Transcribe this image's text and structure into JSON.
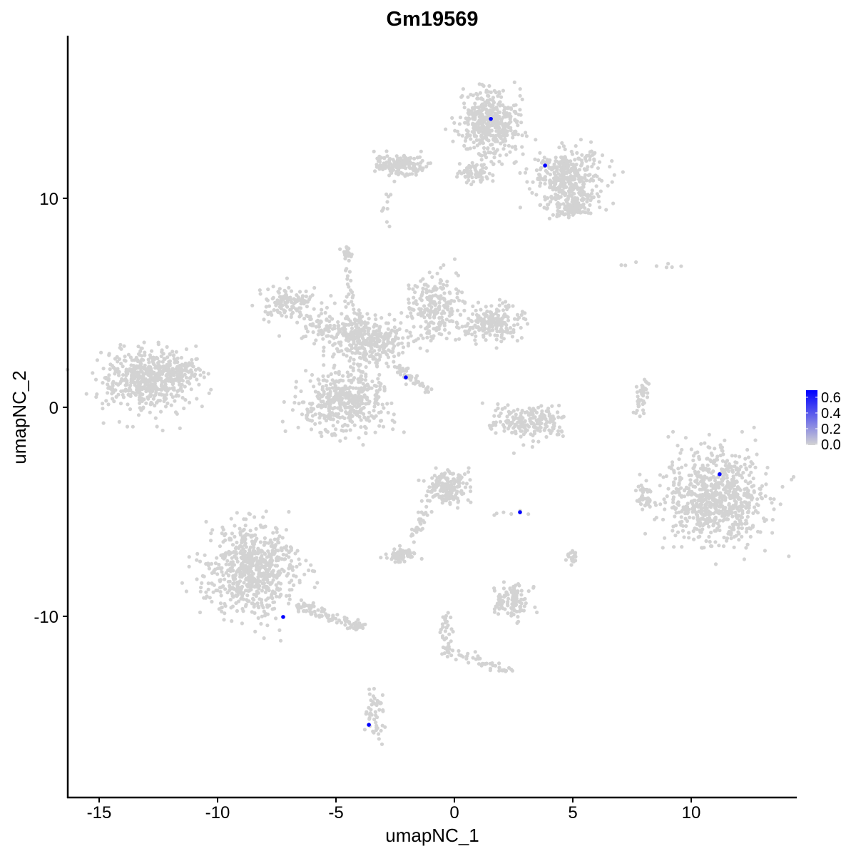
{
  "chart_data": {
    "type": "scatter",
    "title": "Gm19569",
    "xlabel": "umapNC_1",
    "ylabel": "umapNC_2",
    "xlim": [
      -16.5,
      14.5
    ],
    "ylim": [
      -18.4,
      17.7
    ],
    "xticks": [
      -15,
      -10,
      -5,
      0,
      5,
      10
    ],
    "yticks": [
      -10,
      0,
      10
    ],
    "grid": false,
    "colors": {
      "low": "#d3d3d3",
      "high": "#0000ff"
    },
    "legend": {
      "placement": "right",
      "ticks": [
        "0.0",
        "0.2",
        "0.4",
        "0.6"
      ],
      "range": [
        0,
        0.69
      ]
    },
    "expressing_points": [
      {
        "x": 1.54,
        "y": 13.8,
        "value": 0.69
      },
      {
        "x": 3.83,
        "y": 11.57,
        "value": 0.69
      },
      {
        "x": -2.05,
        "y": 1.43,
        "value": 0.69
      },
      {
        "x": 11.2,
        "y": -3.2,
        "value": 0.69
      },
      {
        "x": 2.77,
        "y": -5.02,
        "value": 0.69
      },
      {
        "x": -7.23,
        "y": -10.03,
        "value": 0.69
      },
      {
        "x": -3.61,
        "y": -15.19,
        "value": 0.69
      }
    ],
    "zero_expression_clusters": [
      {
        "cx": -13.0,
        "cy": 1.3,
        "sx": 1.2,
        "sy": 0.9,
        "n": 500
      },
      {
        "cx": -11.8,
        "cy": 1.9,
        "sx": 0.6,
        "sy": 0.5,
        "n": 100
      },
      {
        "cx": -7.1,
        "cy": 5.0,
        "sx": 0.8,
        "sy": 0.5,
        "n": 120
      },
      {
        "cx": -3.6,
        "cy": 3.2,
        "sx": 0.9,
        "sy": 0.8,
        "n": 300
      },
      {
        "cx": -4.6,
        "cy": 0.3,
        "sx": 1.2,
        "sy": 0.9,
        "n": 450
      },
      {
        "cx": -5.5,
        "cy": 3.8,
        "sx": 0.8,
        "sy": 0.5,
        "n": 100
      },
      {
        "cx": -0.8,
        "cy": 4.7,
        "sx": 0.8,
        "sy": 0.9,
        "n": 220
      },
      {
        "cx": 1.6,
        "cy": 4.0,
        "sx": 0.9,
        "sy": 0.5,
        "n": 180
      },
      {
        "cx": -4.5,
        "cy": 7.4,
        "sx": 0.15,
        "sy": 0.2,
        "n": 20
      },
      {
        "cx": 1.5,
        "cy": 13.6,
        "sx": 0.8,
        "sy": 1.0,
        "n": 450
      },
      {
        "cx": 4.8,
        "cy": 11.0,
        "sx": 0.9,
        "sy": 0.8,
        "n": 380
      },
      {
        "cx": 5.0,
        "cy": 9.6,
        "sx": 0.6,
        "sy": 0.3,
        "n": 100
      },
      {
        "cx": -2.4,
        "cy": 11.6,
        "sx": 0.6,
        "sy": 0.3,
        "n": 150
      },
      {
        "cx": 0.9,
        "cy": 11.2,
        "sx": 0.4,
        "sy": 0.3,
        "n": 60
      },
      {
        "cx": 3.1,
        "cy": -0.7,
        "sx": 1.0,
        "sy": 0.5,
        "n": 200
      },
      {
        "cx": 11.0,
        "cy": -4.4,
        "sx": 1.3,
        "sy": 1.4,
        "n": 750
      },
      {
        "cx": 8.0,
        "cy": -4.3,
        "sx": 0.2,
        "sy": 0.5,
        "n": 40
      },
      {
        "cx": -8.6,
        "cy": -7.8,
        "sx": 1.2,
        "sy": 1.4,
        "n": 700
      },
      {
        "cx": -0.3,
        "cy": -3.8,
        "sx": 0.6,
        "sy": 0.5,
        "n": 180
      },
      {
        "cx": -2.2,
        "cy": -7.1,
        "sx": 0.4,
        "sy": 0.2,
        "n": 70
      },
      {
        "cx": 2.5,
        "cy": -9.2,
        "sx": 0.5,
        "sy": 0.5,
        "n": 110
      },
      {
        "cx": 5.0,
        "cy": -7.2,
        "sx": 0.15,
        "sy": 0.2,
        "n": 20
      },
      {
        "cx": -3.4,
        "cy": -14.6,
        "sx": 0.3,
        "sy": 0.7,
        "n": 50
      }
    ],
    "zero_expression_trails": [
      {
        "from": [
          -2.6,
          2.1
        ],
        "to": [
          -1.0,
          0.7
        ],
        "n": 50
      },
      {
        "from": [
          8.0,
          1.2
        ],
        "to": [
          7.8,
          -0.4
        ],
        "n": 40
      },
      {
        "from": [
          -6.5,
          -9.5
        ],
        "to": [
          -4.0,
          -10.5
        ],
        "n": 90
      },
      {
        "from": [
          -0.4,
          -10.0
        ],
        "to": [
          -0.2,
          -12.0
        ],
        "n": 40
      },
      {
        "from": [
          0.2,
          -11.8
        ],
        "to": [
          2.5,
          -12.7
        ],
        "n": 40
      },
      {
        "from": [
          -1.2,
          -4.8
        ],
        "to": [
          -1.8,
          -6.3
        ],
        "n": 30
      },
      {
        "from": [
          -2.7,
          11.8
        ],
        "to": [
          -2.9,
          8.5
        ],
        "n": 12
      },
      {
        "from": [
          -4.6,
          6.5
        ],
        "to": [
          -4.0,
          2.5
        ],
        "n": 30
      },
      {
        "from": [
          7.0,
          6.9
        ],
        "to": [
          9.8,
          6.7
        ],
        "n": 8
      },
      {
        "from": [
          1.0,
          -5.0
        ],
        "to": [
          3.5,
          -5.0
        ],
        "n": 6
      }
    ]
  }
}
